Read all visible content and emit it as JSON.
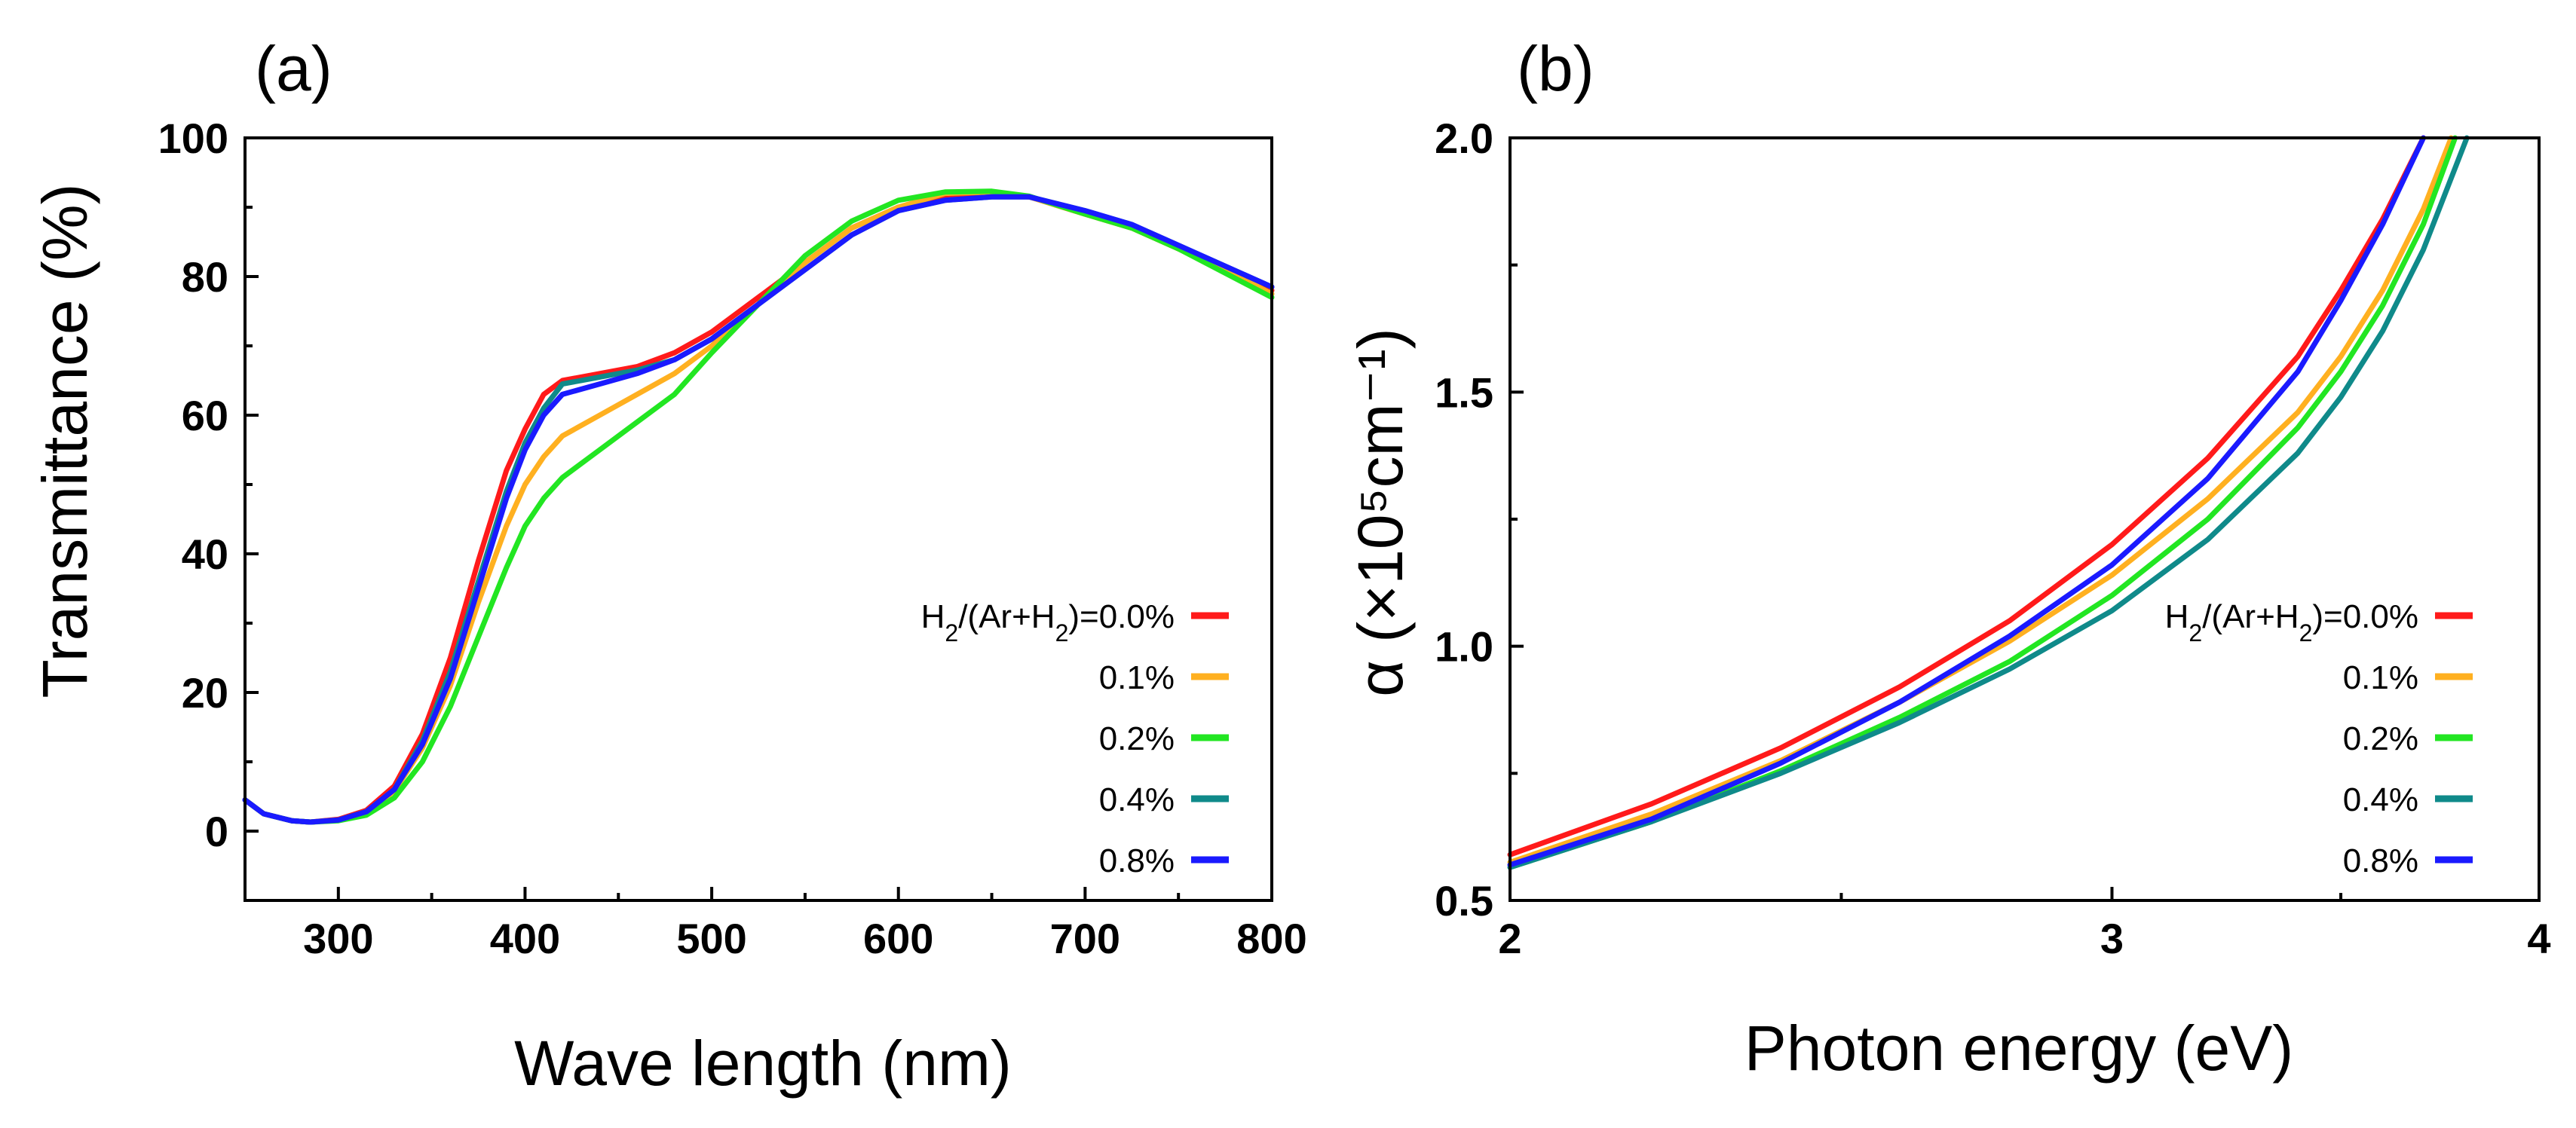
{
  "chart_data": [
    {
      "panel_label": "(a)",
      "type": "line",
      "xlabel": "Wave length (nm)",
      "ylabel": "Transmittance (%)",
      "xlim": [
        250,
        800
      ],
      "ylim": [
        -10,
        100
      ],
      "x_ticks": [
        300,
        400,
        500,
        600,
        700,
        800
      ],
      "y_ticks": [
        0,
        20,
        40,
        60,
        80,
        100
      ],
      "legend_prefix": "H2/(Ar+H2)=",
      "legend_position": "lower-right",
      "series": [
        {
          "name": "0.0%",
          "color": "#ff1a1a",
          "x": [
            250,
            260,
            275,
            285,
            300,
            315,
            330,
            345,
            360,
            375,
            390,
            400,
            410,
            420,
            440,
            460,
            480,
            500,
            525,
            550,
            575,
            600,
            625,
            650,
            670,
            700,
            725,
            750,
            775,
            800
          ],
          "y": [
            4.5,
            2.5,
            1.5,
            1.3,
            1.7,
            3.0,
            6.5,
            14,
            25,
            39,
            52,
            58,
            63,
            65,
            66,
            67,
            69,
            72,
            77,
            82,
            87,
            90,
            91.5,
            91.8,
            91.5,
            89,
            87,
            84,
            81,
            78
          ]
        },
        {
          "name": "0.1%",
          "color": "#ffb020",
          "x": [
            250,
            260,
            275,
            285,
            300,
            315,
            330,
            345,
            360,
            375,
            390,
            400,
            410,
            420,
            440,
            460,
            480,
            500,
            525,
            550,
            575,
            600,
            625,
            650,
            670,
            700,
            725,
            750,
            775,
            800
          ],
          "y": [
            4.5,
            2.5,
            1.5,
            1.3,
            1.6,
            2.6,
            5.8,
            12,
            21,
            33,
            44,
            50,
            54,
            57,
            60,
            63,
            66,
            70,
            76,
            82,
            87,
            90,
            92,
            92.2,
            91.5,
            89,
            87,
            84,
            81,
            77.5
          ]
        },
        {
          "name": "0.2%",
          "color": "#22e622",
          "x": [
            250,
            260,
            275,
            285,
            300,
            315,
            330,
            345,
            360,
            375,
            390,
            400,
            410,
            420,
            440,
            460,
            480,
            500,
            525,
            550,
            575,
            600,
            625,
            650,
            670,
            700,
            725,
            750,
            775,
            800
          ],
          "y": [
            4.5,
            2.5,
            1.5,
            1.3,
            1.5,
            2.3,
            4.8,
            10,
            18,
            28,
            38,
            44,
            48,
            51,
            55,
            59,
            63,
            69,
            76,
            83,
            88,
            91,
            92.2,
            92.3,
            91.6,
            89,
            87,
            84,
            80.5,
            77
          ]
        },
        {
          "name": "0.4%",
          "color": "#0f8a8a",
          "x": [
            250,
            260,
            275,
            285,
            300,
            315,
            330,
            345,
            360,
            375,
            390,
            400,
            410,
            420,
            440,
            460,
            480,
            500,
            525,
            550,
            575,
            600,
            625,
            650,
            670,
            700,
            725,
            750,
            775,
            800
          ],
          "y": [
            4.5,
            2.5,
            1.5,
            1.3,
            1.6,
            2.8,
            6.0,
            13,
            23,
            36,
            49,
            56,
            61,
            64.5,
            65.5,
            66.5,
            68,
            71,
            76,
            81,
            86,
            89.5,
            91,
            91.5,
            91.5,
            89.5,
            87.5,
            84.5,
            81.5,
            78.5
          ]
        },
        {
          "name": "0.8%",
          "color": "#1a1aff",
          "x": [
            250,
            260,
            275,
            285,
            300,
            315,
            330,
            345,
            360,
            375,
            390,
            400,
            410,
            420,
            440,
            460,
            480,
            500,
            525,
            550,
            575,
            600,
            625,
            650,
            670,
            700,
            725,
            750,
            775,
            800
          ],
          "y": [
            4.5,
            2.5,
            1.5,
            1.3,
            1.6,
            2.8,
            6.0,
            12.5,
            22,
            35,
            48,
            55,
            60,
            63,
            64.5,
            66,
            68,
            71,
            76,
            81,
            86,
            89.5,
            91,
            91.5,
            91.5,
            89.5,
            87.5,
            84.5,
            81.5,
            78.5
          ]
        }
      ]
    },
    {
      "panel_label": "(b)",
      "type": "line",
      "xlabel": "Photon energy (eV)",
      "ylabel": "α (×10⁵cm⁻¹)",
      "xscale": "log",
      "xlim": [
        2,
        4
      ],
      "ylim": [
        0.5,
        2.0
      ],
      "x_ticks": [
        2,
        3,
        4
      ],
      "y_ticks": [
        0.5,
        1.0,
        1.5,
        2.0
      ],
      "legend_prefix": "H2/(Ar+H2)=",
      "legend_position": "lower-right",
      "series": [
        {
          "name": "0.0%",
          "color": "#ff1a1a",
          "x": [
            2.0,
            2.2,
            2.4,
            2.6,
            2.8,
            3.0,
            3.2,
            3.4,
            3.5,
            3.6,
            3.7
          ],
          "y": [
            0.59,
            0.69,
            0.8,
            0.92,
            1.05,
            1.2,
            1.37,
            1.57,
            1.7,
            1.84,
            2.0
          ]
        },
        {
          "name": "0.1%",
          "color": "#ffb020",
          "x": [
            2.0,
            2.2,
            2.4,
            2.6,
            2.8,
            3.0,
            3.2,
            3.4,
            3.5,
            3.6,
            3.7,
            3.77
          ],
          "y": [
            0.575,
            0.67,
            0.775,
            0.89,
            1.01,
            1.14,
            1.29,
            1.46,
            1.57,
            1.7,
            1.86,
            2.0
          ]
        },
        {
          "name": "0.2%",
          "color": "#22e622",
          "x": [
            2.0,
            2.2,
            2.4,
            2.6,
            2.8,
            3.0,
            3.2,
            3.4,
            3.5,
            3.6,
            3.7,
            3.78
          ],
          "y": [
            0.565,
            0.655,
            0.755,
            0.86,
            0.97,
            1.1,
            1.25,
            1.43,
            1.54,
            1.67,
            1.83,
            2.0
          ]
        },
        {
          "name": "0.4%",
          "color": "#0f8a8a",
          "x": [
            2.0,
            2.2,
            2.4,
            2.6,
            2.8,
            3.0,
            3.2,
            3.4,
            3.5,
            3.6,
            3.7,
            3.81
          ],
          "y": [
            0.565,
            0.655,
            0.75,
            0.85,
            0.955,
            1.07,
            1.21,
            1.38,
            1.49,
            1.62,
            1.78,
            2.0
          ]
        },
        {
          "name": "0.8%",
          "color": "#1a1aff",
          "x": [
            2.0,
            2.2,
            2.4,
            2.6,
            2.8,
            3.0,
            3.2,
            3.4,
            3.5,
            3.6,
            3.7
          ],
          "y": [
            0.57,
            0.66,
            0.77,
            0.89,
            1.02,
            1.16,
            1.33,
            1.54,
            1.68,
            1.83,
            2.0
          ]
        }
      ]
    }
  ]
}
